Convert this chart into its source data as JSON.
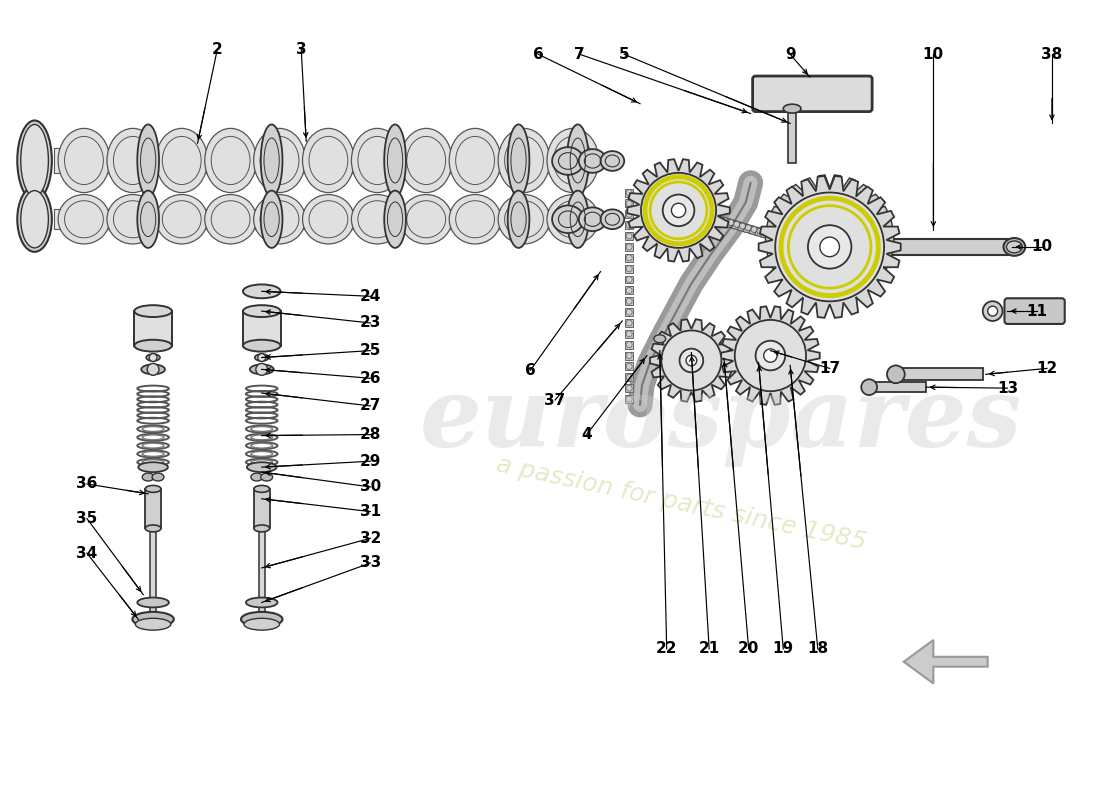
{
  "bg_color": "#ffffff",
  "lc": "#333333",
  "lc_thin": "#555555",
  "fill_light": "#f0f0f0",
  "fill_mid": "#d8d8d8",
  "fill_dark": "#b8b8b8",
  "yellow": "#cccc00",
  "watermark_main": "eurospares",
  "watermark_sub": "a passion for parts since 1985",
  "wm_color": "#cccccc",
  "wm_sub_color": "#cccc88",
  "nav_arrow_color": "#aaaaaa",
  "label_fs": 11,
  "label_fw": "bold"
}
